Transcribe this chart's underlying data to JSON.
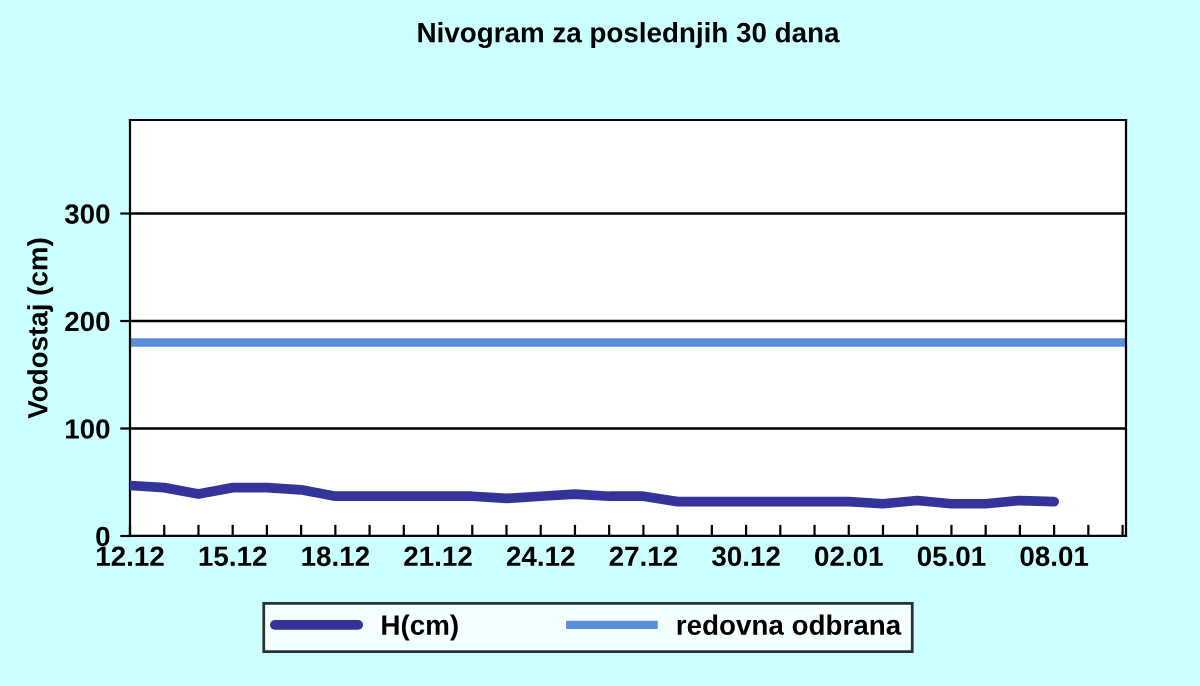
{
  "chart_data": {
    "type": "line",
    "title": "Nivogram za poslednjih 30 dana",
    "ylabel": "Vodostaj (cm)",
    "categories": [
      "12.12",
      null,
      null,
      "15.12",
      null,
      null,
      "18.12",
      null,
      null,
      "21.12",
      null,
      null,
      "24.12",
      null,
      null,
      "27.12",
      null,
      null,
      "30.12",
      null,
      null,
      "02.01",
      null,
      null,
      "05.01",
      null,
      null,
      "08.01",
      null,
      null
    ],
    "series": [
      {
        "name": "H(cm)",
        "color": "#333399",
        "values": [
          47,
          45,
          39,
          45,
          45,
          43,
          37,
          37,
          37,
          37,
          37,
          35,
          37,
          39,
          37,
          37,
          32,
          32,
          32,
          32,
          32,
          32,
          30,
          33,
          30,
          30,
          33,
          32,
          null,
          null
        ]
      }
    ],
    "ref_lines": [
      {
        "axis": "y",
        "value": 180,
        "label": "redovna odbrana",
        "color": "#5b8ddc",
        "line_style": "solid"
      }
    ],
    "ylim": [
      0,
      387
    ],
    "yticks": [
      0,
      100,
      200,
      300
    ],
    "grid": "y",
    "legend": "bottom",
    "marker": "none",
    "line_style": "solid"
  }
}
